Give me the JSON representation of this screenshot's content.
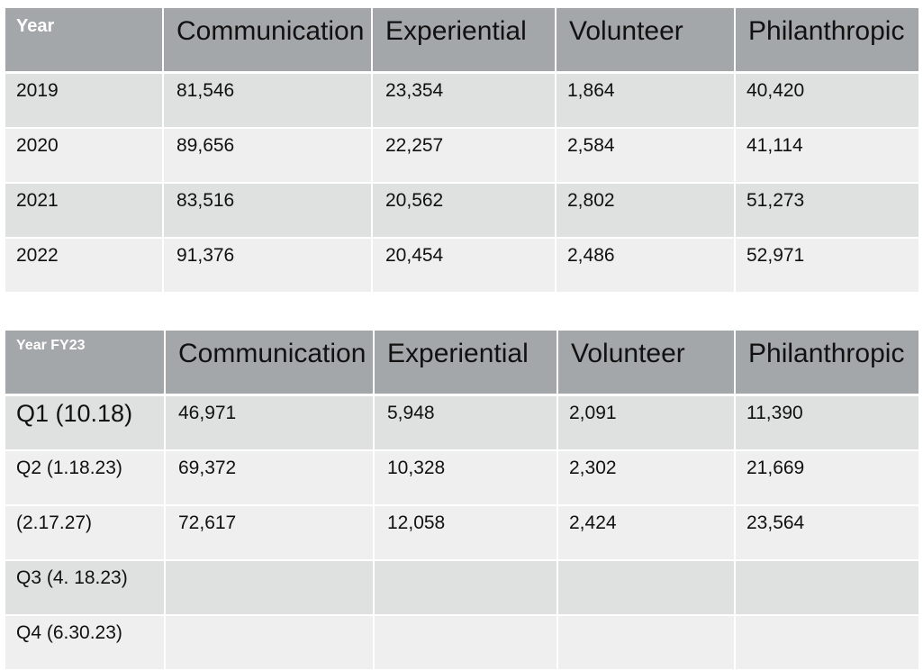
{
  "table1": {
    "header": [
      "Year",
      "Communication",
      "Experiential",
      "Volunteer",
      "Philanthropic"
    ],
    "rows": [
      [
        "2019",
        "81,546",
        "23,354",
        "1,864",
        "40,420"
      ],
      [
        "2020",
        "89,656",
        "22,257",
        "2,584",
        "41,114"
      ],
      [
        "2021",
        "83,516",
        "20,562",
        "2,802",
        "51,273"
      ],
      [
        "2022",
        "91,376",
        "20,454",
        "2,486",
        "52,971"
      ]
    ]
  },
  "table2": {
    "header": [
      "Year FY23",
      "Communication",
      "Experiential",
      "Volunteer",
      "Philanthropic"
    ],
    "rows": [
      [
        "Q1 (10.18)",
        "46,971",
        "5,948",
        "2,091",
        "11,390"
      ],
      [
        "Q2 (1.18.23)",
        "69,372",
        "10,328",
        "2,302",
        "21,669"
      ],
      [
        "(2.17.27)",
        "72,617",
        "12,058",
        "2,424",
        "23,564"
      ],
      [
        "Q3 (4. 18.23)",
        "",
        "",
        "",
        ""
      ],
      [
        "Q4 (6.30.23)",
        "",
        "",
        "",
        ""
      ]
    ]
  },
  "colors": {
    "header_bg": "#a4a7aa",
    "row_dark": "#dfe0e0",
    "row_light": "#efefef",
    "header_first_text": "#ffffff"
  }
}
